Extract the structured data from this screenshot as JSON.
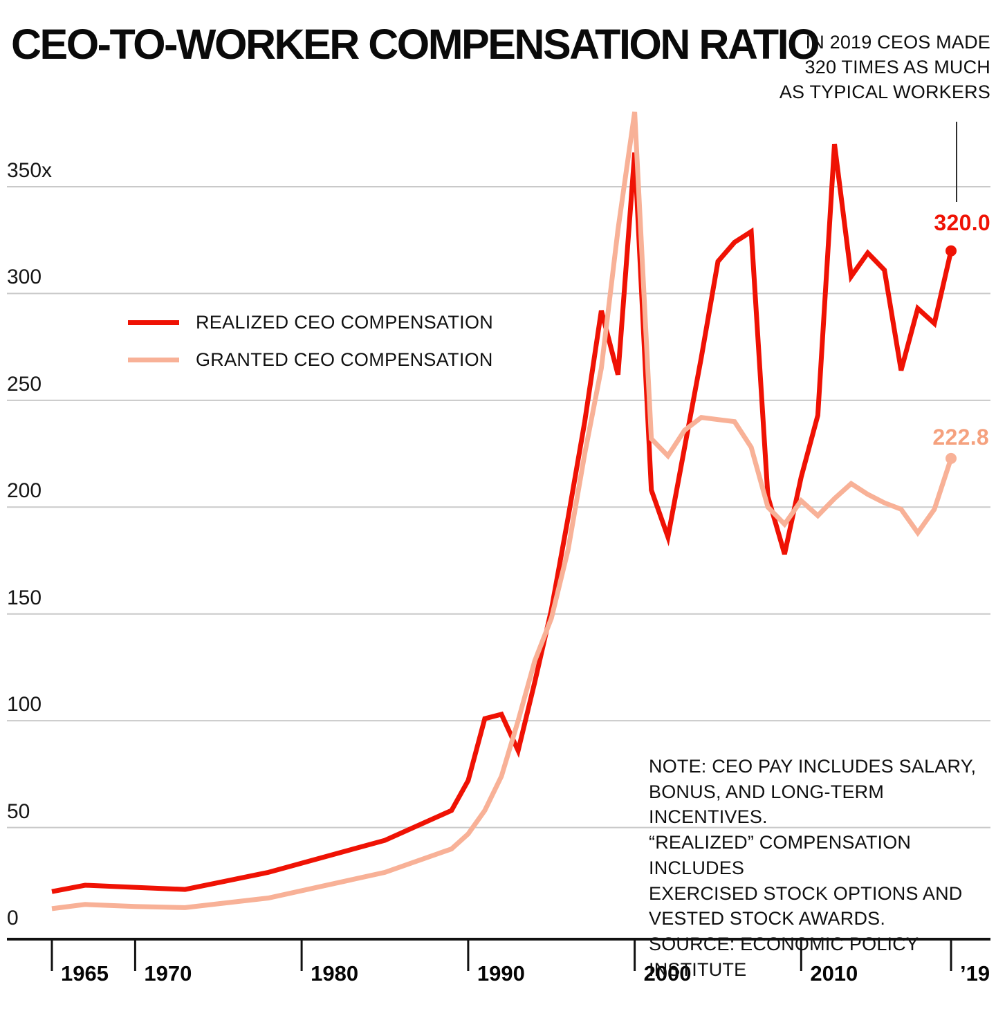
{
  "annotation_text": "IN 2019 CEOS MADE\n320 TIMES AS MUCH\nAS TYPICAL WORKERS",
  "note_text": "NOTE: CEO PAY INCLUDES SALARY,\nBONUS, AND LONG-TERM INCENTIVES.\n“REALIZED” COMPENSATION INCLUDES\nEXERCISED STOCK OPTIONS AND\nVESTED STOCK AWARDS.\nSOURCE: ECONOMIC POLICY INSTITUTE",
  "colors": {
    "realized": "#ef1204",
    "granted": "#f8b197",
    "granted_label": "#f5a17e",
    "grid": "#c9c9c9",
    "axis": "#111111",
    "background": "#ffffff"
  },
  "chart_data": {
    "type": "line",
    "title": "CEO-TO-WORKER COMPENSATION RATIO",
    "xlabel": "",
    "ylabel": "",
    "xlim": [
      1965,
      2019
    ],
    "ylim": [
      0,
      350
    ],
    "grid": true,
    "legend_position": "inside-upper-left",
    "y_ticks": [
      {
        "value": 350,
        "label": "350x"
      },
      {
        "value": 300,
        "label": "300"
      },
      {
        "value": 250,
        "label": "250"
      },
      {
        "value": 200,
        "label": "200"
      },
      {
        "value": 150,
        "label": "150"
      },
      {
        "value": 100,
        "label": "100"
      },
      {
        "value": 50,
        "label": "50"
      },
      {
        "value": 0,
        "label": "0"
      }
    ],
    "x_ticks": [
      {
        "year": 1965,
        "label": "1965"
      },
      {
        "year": 1970,
        "label": "1970"
      },
      {
        "year": 1980,
        "label": "1980"
      },
      {
        "year": 1990,
        "label": "1990"
      },
      {
        "year": 2000,
        "label": "2000"
      },
      {
        "year": 2010,
        "label": "2010"
      },
      {
        "year": 2019,
        "label": "’19"
      }
    ],
    "series": [
      {
        "name": "REALIZED CEO COMPENSATION",
        "color": "#ef1204",
        "label_color": "#ef1204",
        "end_label": "320.0",
        "end_value": 320.0,
        "points": [
          [
            1965,
            20
          ],
          [
            1967,
            23
          ],
          [
            1970,
            22
          ],
          [
            1973,
            21
          ],
          [
            1978,
            29
          ],
          [
            1985,
            44
          ],
          [
            1989,
            58
          ],
          [
            1990,
            72
          ],
          [
            1991,
            101
          ],
          [
            1992,
            103
          ],
          [
            1993,
            86
          ],
          [
            1994,
            118
          ],
          [
            1995,
            152
          ],
          [
            1996,
            195
          ],
          [
            1997,
            240
          ],
          [
            1998,
            292
          ],
          [
            1999,
            262
          ],
          [
            2000,
            366
          ],
          [
            2001,
            208
          ],
          [
            2002,
            186
          ],
          [
            2003,
            228
          ],
          [
            2004,
            270
          ],
          [
            2005,
            315
          ],
          [
            2006,
            324
          ],
          [
            2007,
            329
          ],
          [
            2008,
            205
          ],
          [
            2009,
            178
          ],
          [
            2010,
            214
          ],
          [
            2011,
            243
          ],
          [
            2012,
            370
          ],
          [
            2013,
            308
          ],
          [
            2014,
            319
          ],
          [
            2015,
            311
          ],
          [
            2016,
            264
          ],
          [
            2017,
            293
          ],
          [
            2018,
            286
          ],
          [
            2019,
            320.0
          ]
        ]
      },
      {
        "name": "GRANTED CEO COMPENSATION",
        "color": "#f8b197",
        "label_color": "#f5a17e",
        "end_label": "222.8",
        "end_value": 222.8,
        "points": [
          [
            1965,
            12
          ],
          [
            1967,
            14
          ],
          [
            1970,
            13
          ],
          [
            1973,
            12.5
          ],
          [
            1978,
            17
          ],
          [
            1985,
            29
          ],
          [
            1989,
            40
          ],
          [
            1990,
            47
          ],
          [
            1991,
            58
          ],
          [
            1992,
            74
          ],
          [
            1993,
            100
          ],
          [
            1994,
            128
          ],
          [
            1995,
            148
          ],
          [
            1996,
            180
          ],
          [
            1997,
            225
          ],
          [
            1998,
            265
          ],
          [
            1999,
            330
          ],
          [
            2000,
            385
          ],
          [
            2001,
            232
          ],
          [
            2002,
            224
          ],
          [
            2003,
            236
          ],
          [
            2004,
            242
          ],
          [
            2005,
            241
          ],
          [
            2006,
            240
          ],
          [
            2007,
            228
          ],
          [
            2008,
            200
          ],
          [
            2009,
            192
          ],
          [
            2010,
            203
          ],
          [
            2011,
            196
          ],
          [
            2012,
            204
          ],
          [
            2013,
            211
          ],
          [
            2014,
            206
          ],
          [
            2015,
            202
          ],
          [
            2016,
            199
          ],
          [
            2017,
            188
          ],
          [
            2018,
            199
          ],
          [
            2019,
            222.8
          ]
        ]
      }
    ]
  }
}
